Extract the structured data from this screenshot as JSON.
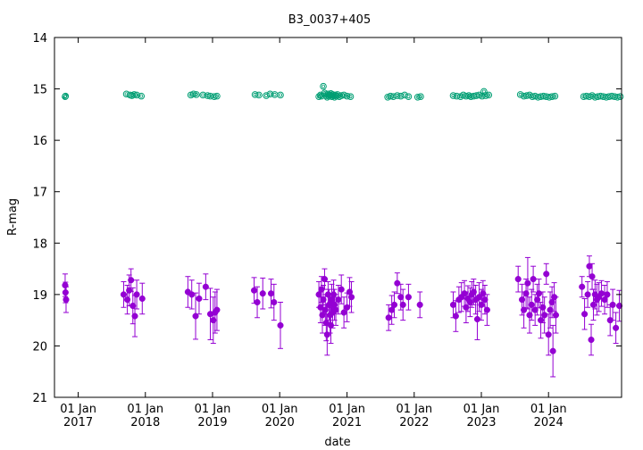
{
  "chart_data": {
    "type": "scatter",
    "title": "B3_0037+405",
    "xlabel": "date",
    "ylabel": "R-mag",
    "xlim": [
      "2016-08-25",
      "2025-02-01"
    ],
    "ylim": [
      14,
      21
    ],
    "y_inverted": true,
    "yticks": [
      14,
      15,
      16,
      17,
      18,
      19,
      20,
      21
    ],
    "xticks": [
      {
        "date": "2017-01-01",
        "line1": "01 Jan",
        "line2": "2017"
      },
      {
        "date": "2018-01-01",
        "line1": "01 Jan",
        "line2": "2018"
      },
      {
        "date": "2019-01-01",
        "line1": "01 Jan",
        "line2": "2019"
      },
      {
        "date": "2020-01-01",
        "line1": "01 Jan",
        "line2": "2020"
      },
      {
        "date": "2021-01-01",
        "line1": "01 Jan",
        "line2": "2021"
      },
      {
        "date": "2022-01-01",
        "line1": "01 Jan",
        "line2": "2022"
      },
      {
        "date": "2023-01-01",
        "line1": "01 Jan",
        "line2": "2023"
      },
      {
        "date": "2024-01-01",
        "line1": "01 Jan",
        "line2": "2024"
      }
    ],
    "grid": false,
    "legend": "none",
    "series": [
      {
        "marker": "open-circle",
        "color": "#009e73",
        "points": [
          [
            "2016-10-22",
            15.15
          ],
          [
            "2016-10-24",
            15.14
          ],
          [
            "2017-09-20",
            15.1
          ],
          [
            "2017-10-10",
            15.12
          ],
          [
            "2017-10-20",
            15.13
          ],
          [
            "2017-11-01",
            15.11
          ],
          [
            "2017-11-15",
            15.12
          ],
          [
            "2017-12-10",
            15.14
          ],
          [
            "2018-09-05",
            15.12
          ],
          [
            "2018-09-20",
            15.1
          ],
          [
            "2018-10-05",
            15.11
          ],
          [
            "2018-11-10",
            15.12
          ],
          [
            "2018-12-05",
            15.13
          ],
          [
            "2018-12-20",
            15.14
          ],
          [
            "2019-01-10",
            15.15
          ],
          [
            "2019-01-25",
            15.14
          ],
          [
            "2019-08-20",
            15.11
          ],
          [
            "2019-09-10",
            15.12
          ],
          [
            "2019-10-20",
            15.13
          ],
          [
            "2019-11-10",
            15.1
          ],
          [
            "2019-12-05",
            15.11
          ],
          [
            "2020-01-05",
            15.12
          ],
          [
            "2020-08-01",
            15.15
          ],
          [
            "2020-08-10",
            15.12
          ],
          [
            "2020-08-15",
            15.14
          ],
          [
            "2020-08-25",
            14.95
          ],
          [
            "2020-09-01",
            15.08
          ],
          [
            "2020-09-08",
            15.13
          ],
          [
            "2020-09-15",
            15.16
          ],
          [
            "2020-09-20",
            15.1
          ],
          [
            "2020-09-25",
            15.14
          ],
          [
            "2020-10-01",
            15.12
          ],
          [
            "2020-10-05",
            15.09
          ],
          [
            "2020-10-10",
            15.15
          ],
          [
            "2020-10-15",
            15.11
          ],
          [
            "2020-10-20",
            15.13
          ],
          [
            "2020-10-25",
            15.16
          ],
          [
            "2020-10-30",
            15.12
          ],
          [
            "2020-11-05",
            15.14
          ],
          [
            "2020-11-10",
            15.11
          ],
          [
            "2020-11-20",
            15.15
          ],
          [
            "2020-12-01",
            15.13
          ],
          [
            "2020-12-15",
            15.12
          ],
          [
            "2021-01-01",
            15.14
          ],
          [
            "2021-01-20",
            15.15
          ],
          [
            "2021-08-10",
            15.16
          ],
          [
            "2021-08-25",
            15.14
          ],
          [
            "2021-09-10",
            15.15
          ],
          [
            "2021-10-01",
            15.13
          ],
          [
            "2021-10-20",
            15.14
          ],
          [
            "2021-11-10",
            15.12
          ],
          [
            "2021-12-01",
            15.15
          ],
          [
            "2022-01-20",
            15.16
          ],
          [
            "2022-02-05",
            15.15
          ],
          [
            "2022-08-01",
            15.13
          ],
          [
            "2022-08-20",
            15.14
          ],
          [
            "2022-09-10",
            15.15
          ],
          [
            "2022-09-25",
            15.12
          ],
          [
            "2022-10-10",
            15.14
          ],
          [
            "2022-10-25",
            15.13
          ],
          [
            "2022-11-05",
            15.15
          ],
          [
            "2022-11-20",
            15.14
          ],
          [
            "2022-12-05",
            15.13
          ],
          [
            "2022-12-20",
            15.12
          ],
          [
            "2023-01-05",
            15.14
          ],
          [
            "2023-01-15",
            15.05
          ],
          [
            "2023-01-25",
            15.13
          ],
          [
            "2023-02-10",
            15.12
          ],
          [
            "2023-08-01",
            15.11
          ],
          [
            "2023-08-20",
            15.14
          ],
          [
            "2023-09-05",
            15.13
          ],
          [
            "2023-09-20",
            15.12
          ],
          [
            "2023-10-05",
            15.15
          ],
          [
            "2023-10-20",
            15.14
          ],
          [
            "2023-11-05",
            15.16
          ],
          [
            "2023-11-20",
            15.15
          ],
          [
            "2023-12-05",
            15.14
          ],
          [
            "2023-12-20",
            15.15
          ],
          [
            "2024-01-05",
            15.16
          ],
          [
            "2024-01-20",
            15.15
          ],
          [
            "2024-02-05",
            15.14
          ],
          [
            "2024-07-10",
            15.15
          ],
          [
            "2024-07-25",
            15.14
          ],
          [
            "2024-08-10",
            15.15
          ],
          [
            "2024-08-25",
            15.13
          ],
          [
            "2024-09-10",
            15.16
          ],
          [
            "2024-09-25",
            15.15
          ],
          [
            "2024-10-10",
            15.14
          ],
          [
            "2024-10-25",
            15.15
          ],
          [
            "2024-11-10",
            15.16
          ],
          [
            "2024-11-25",
            15.15
          ],
          [
            "2024-12-10",
            15.14
          ],
          [
            "2024-12-25",
            15.15
          ],
          [
            "2025-01-10",
            15.16
          ],
          [
            "2025-01-25",
            15.15
          ]
        ]
      },
      {
        "marker": "filled-circle",
        "color": "#9400d3",
        "points": [
          [
            "2016-10-22",
            18.82,
            0.22
          ],
          [
            "2016-10-24",
            18.96,
            0.2
          ],
          [
            "2016-10-27",
            19.1,
            0.25
          ],
          [
            "2017-09-05",
            19.0,
            0.25
          ],
          [
            "2017-09-25",
            19.1,
            0.28
          ],
          [
            "2017-10-05",
            18.92,
            0.3
          ],
          [
            "2017-10-15",
            18.72,
            0.22
          ],
          [
            "2017-10-25",
            19.22,
            0.35
          ],
          [
            "2017-11-05",
            19.42,
            0.4
          ],
          [
            "2017-11-15",
            19.0,
            0.28
          ],
          [
            "2017-12-15",
            19.08,
            0.3
          ],
          [
            "2018-08-20",
            18.95,
            0.3
          ],
          [
            "2018-09-10",
            19.0,
            0.28
          ],
          [
            "2018-10-01",
            19.42,
            0.45
          ],
          [
            "2018-10-20",
            19.08,
            0.3
          ],
          [
            "2018-11-25",
            18.85,
            0.25
          ],
          [
            "2018-12-20",
            19.38,
            0.5
          ],
          [
            "2019-01-05",
            19.5,
            0.45
          ],
          [
            "2019-01-15",
            19.35,
            0.4
          ],
          [
            "2019-01-25",
            19.3,
            0.4
          ],
          [
            "2019-08-15",
            18.92,
            0.25
          ],
          [
            "2019-09-01",
            19.15,
            0.3
          ],
          [
            "2019-10-01",
            18.98,
            0.3
          ],
          [
            "2019-11-15",
            18.98,
            0.28
          ],
          [
            "2019-12-01",
            19.15,
            0.35
          ],
          [
            "2020-01-05",
            19.6,
            0.45
          ],
          [
            "2020-08-01",
            19.0,
            0.25
          ],
          [
            "2020-08-10",
            19.25,
            0.3
          ],
          [
            "2020-08-15",
            18.9,
            0.25
          ],
          [
            "2020-08-20",
            19.4,
            0.35
          ],
          [
            "2020-08-25",
            19.1,
            0.28
          ],
          [
            "2020-09-01",
            18.7,
            0.2
          ],
          [
            "2020-09-05",
            19.3,
            0.3
          ],
          [
            "2020-09-10",
            19.55,
            0.35
          ],
          [
            "2020-09-15",
            19.78,
            0.4
          ],
          [
            "2020-09-20",
            19.0,
            0.25
          ],
          [
            "2020-09-25",
            19.2,
            0.3
          ],
          [
            "2020-10-01",
            19.4,
            0.35
          ],
          [
            "2020-10-05",
            19.6,
            0.35
          ],
          [
            "2020-10-10",
            19.1,
            0.3
          ],
          [
            "2020-10-15",
            19.35,
            0.3
          ],
          [
            "2020-10-20",
            19.0,
            0.28
          ],
          [
            "2020-10-25",
            19.2,
            0.3
          ],
          [
            "2020-11-01",
            19.3,
            0.3
          ],
          [
            "2020-11-15",
            19.1,
            0.28
          ],
          [
            "2020-12-01",
            18.9,
            0.28
          ],
          [
            "2020-12-15",
            19.35,
            0.3
          ],
          [
            "2021-01-01",
            19.25,
            0.28
          ],
          [
            "2021-01-15",
            18.95,
            0.28
          ],
          [
            "2021-01-25",
            19.05,
            0.3
          ],
          [
            "2021-08-15",
            19.45,
            0.25
          ],
          [
            "2021-09-01",
            19.3,
            0.28
          ],
          [
            "2021-09-15",
            19.2,
            0.25
          ],
          [
            "2021-10-01",
            18.78,
            0.2
          ],
          [
            "2021-10-20",
            19.05,
            0.25
          ],
          [
            "2021-11-01",
            19.2,
            0.3
          ],
          [
            "2021-12-01",
            19.05,
            0.25
          ],
          [
            "2022-02-01",
            19.2,
            0.25
          ],
          [
            "2022-08-01",
            19.2,
            0.25
          ],
          [
            "2022-08-15",
            19.42,
            0.3
          ],
          [
            "2022-09-01",
            19.1,
            0.25
          ],
          [
            "2022-09-15",
            19.05,
            0.28
          ],
          [
            "2022-10-01",
            18.98,
            0.25
          ],
          [
            "2022-10-10",
            19.25,
            0.3
          ],
          [
            "2022-10-20",
            19.08,
            0.25
          ],
          [
            "2022-11-01",
            19.15,
            0.28
          ],
          [
            "2022-11-10",
            19.0,
            0.25
          ],
          [
            "2022-11-20",
            18.95,
            0.25
          ],
          [
            "2022-12-01",
            19.1,
            0.28
          ],
          [
            "2022-12-10",
            19.48,
            0.4
          ],
          [
            "2022-12-20",
            19.05,
            0.28
          ],
          [
            "2023-01-01",
            19.2,
            0.3
          ],
          [
            "2023-01-10",
            18.98,
            0.25
          ],
          [
            "2023-01-20",
            19.1,
            0.28
          ],
          [
            "2023-02-01",
            19.3,
            0.3
          ],
          [
            "2023-07-20",
            18.7,
            0.25
          ],
          [
            "2023-08-10",
            19.1,
            0.3
          ],
          [
            "2023-08-20",
            19.3,
            0.35
          ],
          [
            "2023-09-01",
            18.98,
            0.28
          ],
          [
            "2023-09-10",
            18.78,
            0.5
          ],
          [
            "2023-09-20",
            19.4,
            0.35
          ],
          [
            "2023-10-01",
            19.2,
            0.3
          ],
          [
            "2023-10-10",
            18.7,
            0.25
          ],
          [
            "2023-10-20",
            19.3,
            0.3
          ],
          [
            "2023-11-01",
            19.1,
            0.3
          ],
          [
            "2023-11-10",
            18.98,
            0.28
          ],
          [
            "2023-11-20",
            19.5,
            0.35
          ],
          [
            "2023-12-01",
            19.25,
            0.3
          ],
          [
            "2023-12-10",
            19.4,
            0.35
          ],
          [
            "2023-12-20",
            18.6,
            0.2
          ],
          [
            "2024-01-01",
            19.78,
            0.4
          ],
          [
            "2024-01-10",
            19.3,
            0.35
          ],
          [
            "2024-01-20",
            19.15,
            0.3
          ],
          [
            "2024-01-25",
            20.1,
            0.5
          ],
          [
            "2024-02-01",
            19.05,
            0.28
          ],
          [
            "2024-02-10",
            19.4,
            0.35
          ],
          [
            "2024-07-01",
            18.85,
            0.2
          ],
          [
            "2024-07-15",
            19.38,
            0.3
          ],
          [
            "2024-08-01",
            19.0,
            0.25
          ],
          [
            "2024-08-10",
            18.45,
            0.2
          ],
          [
            "2024-08-20",
            19.88,
            0.3
          ],
          [
            "2024-08-25",
            18.65,
            0.25
          ],
          [
            "2024-09-01",
            19.2,
            0.3
          ],
          [
            "2024-09-10",
            19.0,
            0.28
          ],
          [
            "2024-09-20",
            19.1,
            0.3
          ],
          [
            "2024-10-01",
            19.05,
            0.28
          ],
          [
            "2024-10-15",
            18.98,
            0.25
          ],
          [
            "2024-11-01",
            19.1,
            0.28
          ],
          [
            "2024-11-15",
            19.0,
            0.25
          ],
          [
            "2024-12-01",
            19.5,
            0.3
          ],
          [
            "2024-12-15",
            19.2,
            0.3
          ],
          [
            "2025-01-01",
            19.65,
            0.3
          ],
          [
            "2025-01-20",
            19.22,
            0.3
          ]
        ]
      }
    ]
  }
}
